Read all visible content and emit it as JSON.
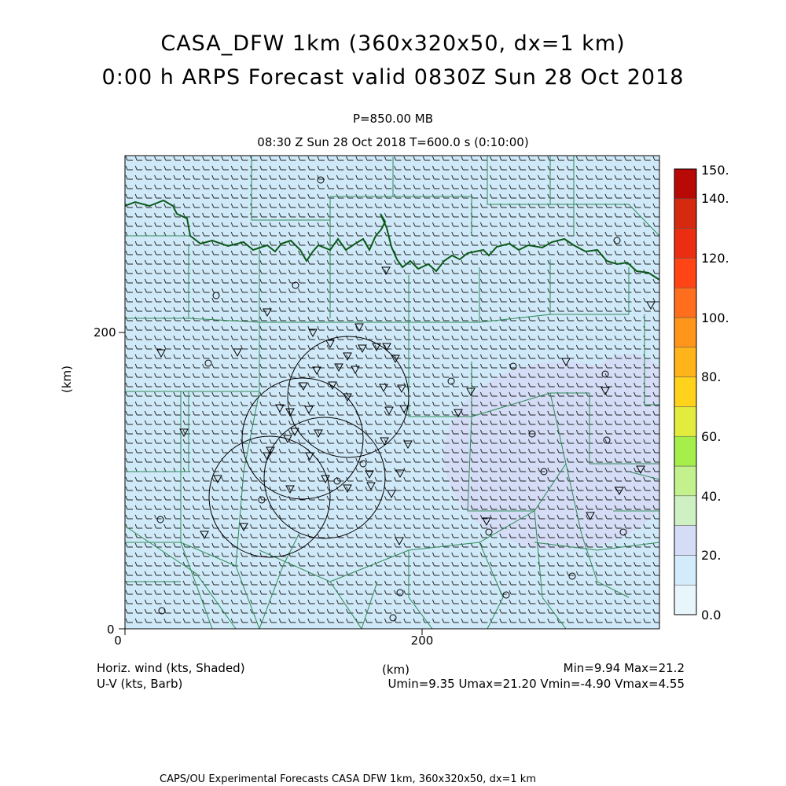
{
  "titles": {
    "line1": "CASA_DFW 1km (360x320x50, dx=1 km)",
    "line2": "0:00 h ARPS Forecast valid 0830Z Sun 28 Oct 2018",
    "level": "P=850.00 MB",
    "time": "08:30 Z Sun 28 Oct 2018    T=600.0 s (0:10:00)"
  },
  "axes": {
    "x_ticks": [
      "0",
      "200"
    ],
    "y_ticks": [
      "0",
      "200"
    ],
    "x_label": "(km)",
    "y_label": "(km)",
    "x_range_km": [
      0,
      360
    ],
    "y_range_km": [
      0,
      320
    ]
  },
  "colorbar": {
    "labels": [
      "0.0",
      "20.",
      "40.",
      "60.",
      "80.",
      "100.",
      "120.",
      "140.",
      "150."
    ],
    "colors": [
      "#e8f6fc",
      "#d3ebfa",
      "#d4dcf6",
      "#cef0c3",
      "#c3f18d",
      "#a6ee49",
      "#e3ec3c",
      "#ffd21b",
      "#ffb41a",
      "#ff951b",
      "#ff6e1c",
      "#ff4416",
      "#eb2e12",
      "#d52910",
      "#b80907"
    ]
  },
  "legend": {
    "left_line1": "Horiz. wind (kts, Shaded)",
    "left_line2": "U-V (kts, Barb)",
    "center_label": "(km)",
    "right_line1": "Min=9.94 Max=21.2",
    "right_line2": "Umin=9.35 Umax=21.20 Vmin=-4.90 Vmax=4.55"
  },
  "footer": "CAPS/OU Experimental Forecasts  CASA DFW 1km, 360x320x50, dx=1 km",
  "field": {
    "base_color": "#d0e9f8",
    "barb_color": "#222222",
    "county_color": "#2e8b57",
    "river_color": "#0a5a1a",
    "radar_ring_color": "#000000"
  }
}
